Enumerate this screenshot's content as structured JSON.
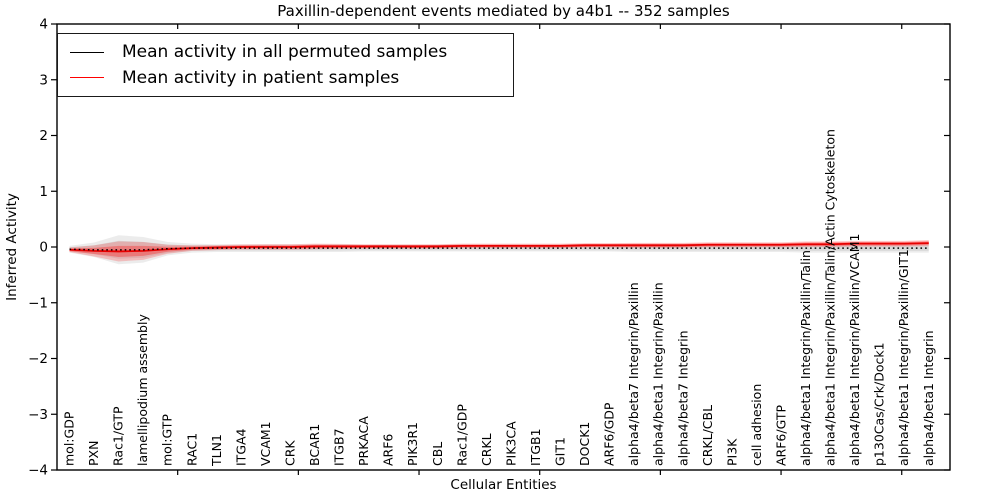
{
  "chart_data": {
    "type": "line",
    "title": "Paxillin-dependent events mediated by a4b1 -- 352 samples",
    "xlabel": "Cellular Entities",
    "ylabel": "Inferred Activity",
    "ylim": [
      -4,
      4
    ],
    "yticks": [
      -4,
      -3,
      -2,
      -1,
      0,
      1,
      2,
      3,
      4
    ],
    "grid": false,
    "legend_position": "upper left",
    "categories": [
      "mol:GDP",
      "PXN",
      "Rac1/GTP",
      "lamellipodium assembly",
      "mol:GTP",
      "RAC1",
      "TLN1",
      "ITGA4",
      "VCAM1",
      "CRK",
      "BCAR1",
      "ITGB7",
      "PRKACA",
      "ARF6",
      "PIK3R1",
      "CBL",
      "Rac1/GDP",
      "CRKL",
      "PIK3CA",
      "ITGB1",
      "GIT1",
      "DOCK1",
      "ARF6/GDP",
      "alpha4/beta7 Integrin/Paxillin",
      "alpha4/beta1 Integrin/Paxillin",
      "alpha4/beta7 Integrin",
      "CRKL/CBL",
      "PI3K",
      "cell adhesion",
      "ARF6/GTP",
      "alpha4/beta1 Integrin/Paxillin/Talin",
      "alpha4/beta1 Integrin/Paxillin/Talin/Actin Cytoskeleton",
      "alpha4/beta1 Integrin/Paxillin/VCAM1",
      "p130Cas/Crk/Dock1",
      "alpha4/beta1 Integrin/Paxillin/GIT1",
      "alpha4/beta1 Integrin"
    ],
    "series": [
      {
        "name": "Mean activity in all permuted samples",
        "color": "#000000",
        "style": "dotted",
        "values": [
          -0.04,
          -0.05,
          -0.05,
          -0.05,
          -0.03,
          -0.02,
          -0.02,
          -0.02,
          -0.02,
          -0.02,
          -0.02,
          -0.02,
          -0.02,
          -0.02,
          -0.02,
          -0.02,
          -0.02,
          -0.02,
          -0.02,
          -0.02,
          -0.02,
          -0.02,
          -0.02,
          -0.02,
          -0.02,
          -0.02,
          -0.02,
          -0.02,
          -0.02,
          -0.02,
          -0.02,
          -0.02,
          -0.02,
          -0.02,
          -0.02,
          -0.02
        ]
      },
      {
        "name": "Mean activity in patient samples",
        "color": "#ff0000",
        "style": "solid",
        "values": [
          -0.05,
          -0.07,
          -0.08,
          -0.07,
          -0.04,
          -0.02,
          -0.01,
          0.0,
          0.0,
          0.0,
          0.01,
          0.01,
          0.01,
          0.01,
          0.01,
          0.01,
          0.02,
          0.02,
          0.02,
          0.02,
          0.02,
          0.03,
          0.03,
          0.03,
          0.03,
          0.03,
          0.04,
          0.04,
          0.04,
          0.04,
          0.05,
          0.05,
          0.06,
          0.06,
          0.06,
          0.07
        ]
      }
    ],
    "violins": {
      "note": "half-widths of the shaded distribution bands around each mean, in activity units",
      "permuted_halfwidth": [
        0.06,
        0.13,
        0.26,
        0.23,
        0.12,
        0.08,
        0.07,
        0.07,
        0.07,
        0.07,
        0.07,
        0.07,
        0.06,
        0.06,
        0.06,
        0.06,
        0.06,
        0.06,
        0.06,
        0.06,
        0.06,
        0.06,
        0.06,
        0.07,
        0.07,
        0.07,
        0.07,
        0.07,
        0.07,
        0.07,
        0.08,
        0.08,
        0.08,
        0.08,
        0.08,
        0.08
      ],
      "patient_outer_halfwidth": [
        0.04,
        0.1,
        0.18,
        0.16,
        0.08,
        0.05,
        0.045,
        0.045,
        0.05,
        0.05,
        0.05,
        0.045,
        0.04,
        0.04,
        0.04,
        0.04,
        0.04,
        0.04,
        0.04,
        0.04,
        0.04,
        0.04,
        0.04,
        0.045,
        0.045,
        0.045,
        0.045,
        0.045,
        0.045,
        0.045,
        0.05,
        0.05,
        0.05,
        0.05,
        0.05,
        0.055
      ],
      "patient_inner_halfwidth": [
        0.025,
        0.055,
        0.1,
        0.09,
        0.045,
        0.03,
        0.028,
        0.028,
        0.03,
        0.03,
        0.03,
        0.028,
        0.025,
        0.025,
        0.025,
        0.025,
        0.025,
        0.025,
        0.025,
        0.025,
        0.025,
        0.025,
        0.025,
        0.028,
        0.028,
        0.028,
        0.028,
        0.028,
        0.028,
        0.028,
        0.032,
        0.032,
        0.032,
        0.032,
        0.032,
        0.035
      ]
    },
    "colors": {
      "frame": "#000000",
      "permuted_band": "#888888",
      "patient_band": "#ff0000",
      "patient_line": "#e60000"
    }
  }
}
